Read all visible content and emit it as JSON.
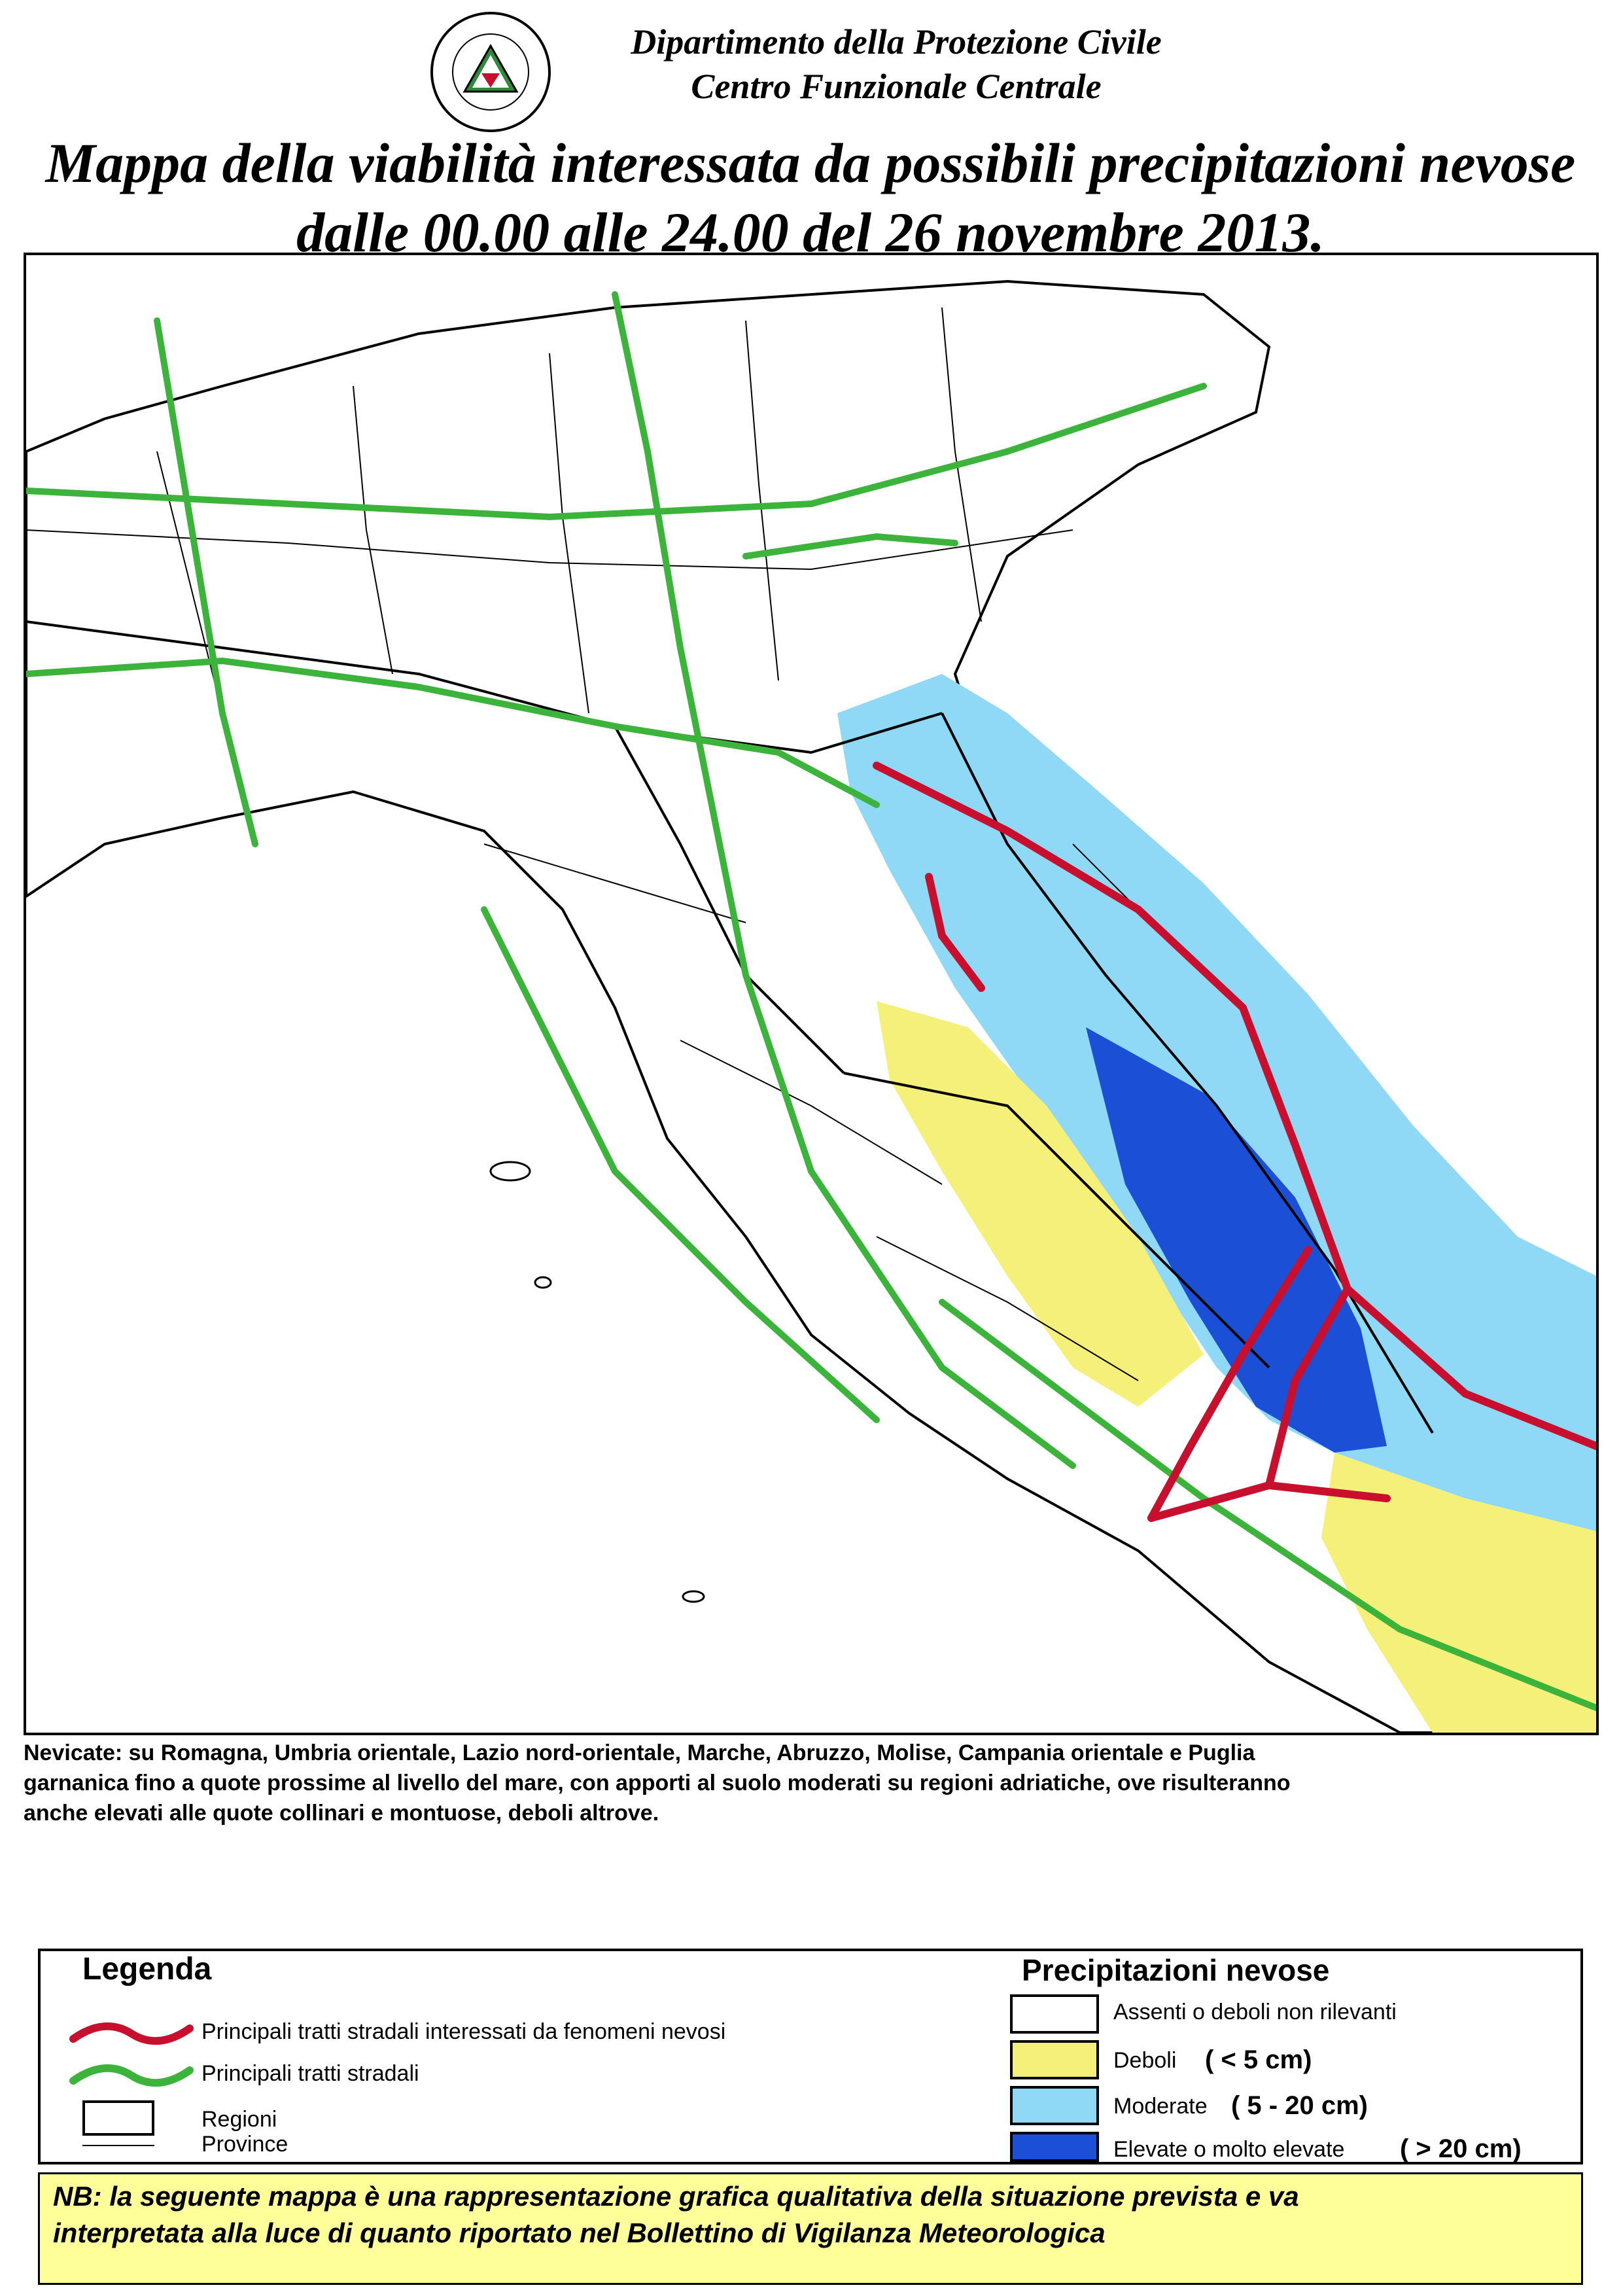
{
  "header": {
    "logo_text": "PROTEZIONE CIVILE NAZIONALE",
    "org_line1": "Dipartimento della Protezione Civile",
    "org_line2": "Centro Funzionale Centrale"
  },
  "title": {
    "line1": "Mappa della viabilità interessata da possibili precipitazioni nevose",
    "line2": "dalle 00.00 alle 24.00 del 26 novembre 2013."
  },
  "map": {
    "colors": {
      "land": "#ffffff",
      "deboli": "#f5f07a",
      "moderate": "#8fd8f6",
      "elevate": "#1a4fd6",
      "road_affected": "#c8102e",
      "road_main": "#3cb43c",
      "border": "#000000"
    }
  },
  "note": {
    "line1": "Nevicate: su Romagna, Umbria orientale, Lazio nord-orientale, Marche, Abruzzo, Molise, Campania orientale e Puglia",
    "line2": "garnanica fino a quote prossime al livello del mare, con apporti al suolo moderati su regioni adriatiche, ove risulteranno",
    "line3": "anche elevati alle quote collinari e montuose, deboli altrove."
  },
  "legend": {
    "title": "Legenda",
    "items": [
      {
        "label": "Principali tratti stradali interessati da fenomeni nevosi",
        "icon": "red-road-line"
      },
      {
        "label": "Principali tratti stradali",
        "icon": "green-road-line"
      },
      {
        "label": "Regioni",
        "icon": "thick-border-box"
      },
      {
        "label": "Province",
        "icon": "thin-border-box"
      }
    ]
  },
  "precipitation": {
    "title": "Precipitazioni nevose",
    "classes": [
      {
        "label": "Assenti o deboli non rilevanti",
        "range": "",
        "color": "#ffffff"
      },
      {
        "label": "Deboli",
        "range": "( < 5 cm)",
        "color": "#f5f07a"
      },
      {
        "label": "Moderate",
        "range": "( 5 - 20 cm)",
        "color": "#8fd8f6"
      },
      {
        "label": "Elevate o molto elevate",
        "range": "( > 20 cm)",
        "color": "#1a4fd6"
      }
    ]
  },
  "nb": {
    "line1": "NB: la seguente mappa è una rappresentazione grafica qualitativa della situazione prevista e va",
    "line2": "interpretata alla luce di quanto riportato nel Bollettino di Vigilanza Meteorologica"
  }
}
